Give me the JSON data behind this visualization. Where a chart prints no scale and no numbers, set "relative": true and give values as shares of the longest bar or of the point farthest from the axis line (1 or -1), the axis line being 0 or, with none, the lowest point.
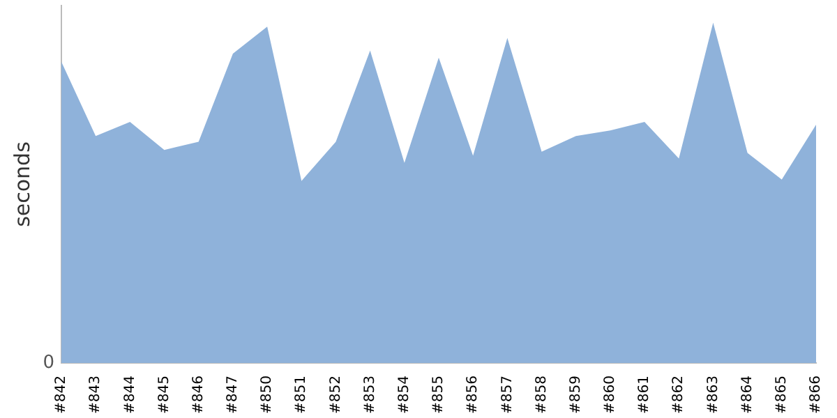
{
  "chart_data": {
    "type": "area",
    "relative": true,
    "ylabel": "seconds",
    "annotations": [
      "0"
    ],
    "categories": [
      "#842",
      "#843",
      "#844",
      "#845",
      "#846",
      "#847",
      "#850",
      "#851",
      "#852",
      "#853",
      "#854",
      "#855",
      "#856",
      "#857",
      "#858",
      "#859",
      "#860",
      "#861",
      "#862",
      "#863",
      "#864",
      "#865",
      "#866"
    ],
    "series": [
      {
        "color": "#8fb2da",
        "values": [
          0.885,
          0.667,
          0.708,
          0.626,
          0.65,
          0.909,
          0.988,
          0.535,
          0.65,
          0.918,
          0.588,
          0.897,
          0.609,
          0.955,
          0.621,
          0.667,
          0.683,
          0.708,
          0.601,
          1,
          0.617,
          0.539,
          0.7
        ]
      }
    ],
    "grid": false,
    "legend": false
  }
}
